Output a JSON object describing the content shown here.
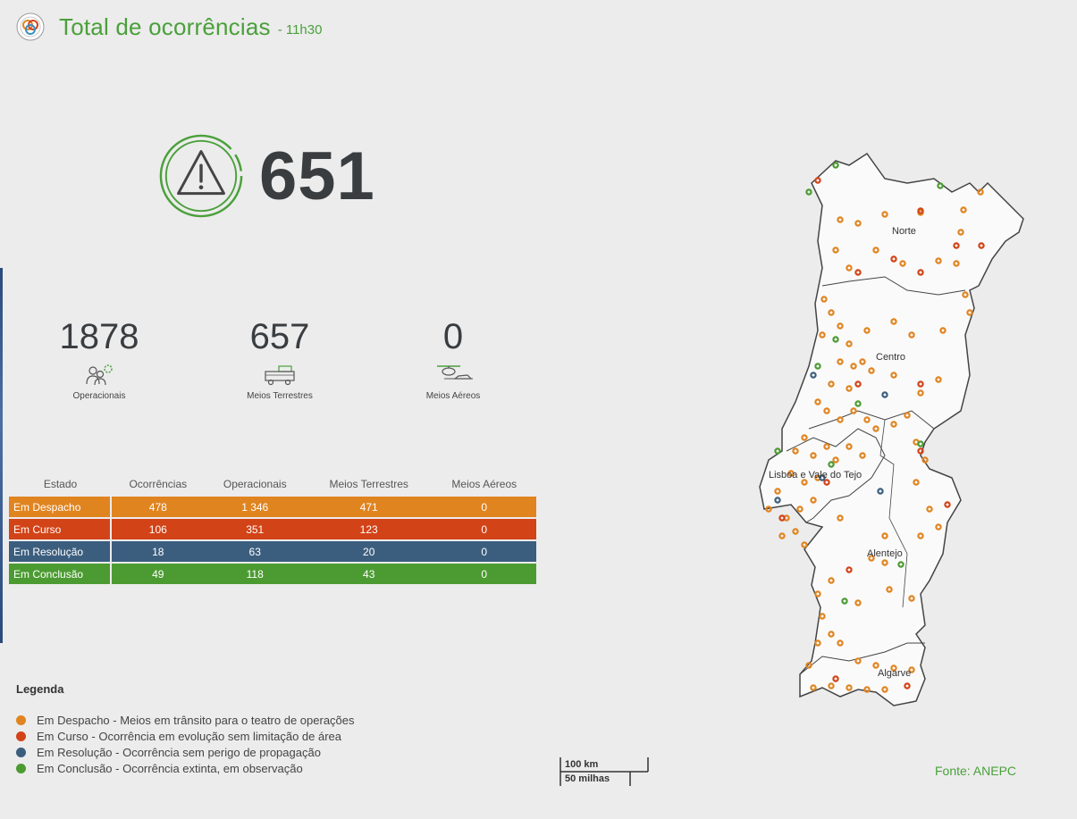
{
  "header": {
    "title": "Total de ocorrências",
    "time": "- 11h30",
    "logo_icon": "anepc-logo-icon"
  },
  "total": {
    "value": "651",
    "icon": "warning-icon"
  },
  "stats": [
    {
      "value": "1878",
      "label": "Operacionais",
      "icon": "firefighters-icon"
    },
    {
      "value": "657",
      "label": "Meios Terrestres",
      "icon": "fire-truck-icon"
    },
    {
      "value": "0",
      "label": "Meios Aéreos",
      "icon": "aircraft-icon"
    }
  ],
  "table": {
    "headers": [
      "Estado",
      "Ocorrências",
      "Operacionais",
      "Meios Terrestres",
      "Meios Aéreos"
    ],
    "rows": [
      {
        "estado": "Em Despacho",
        "ocorrencias": "478",
        "operacionais": "1 346",
        "terrestres": "471",
        "aereos": "0"
      },
      {
        "estado": "Em Curso",
        "ocorrencias": "106",
        "operacionais": "351",
        "terrestres": "123",
        "aereos": "0"
      },
      {
        "estado": "Em Resolução",
        "ocorrencias": "18",
        "operacionais": "63",
        "terrestres": "20",
        "aereos": "0"
      },
      {
        "estado": "Em Conclusão",
        "ocorrencias": "49",
        "operacionais": "118",
        "terrestres": "43",
        "aereos": "0"
      }
    ]
  },
  "legend": {
    "title": "Legenda",
    "items": [
      {
        "label": "Em Despacho - Meios em trânsito para o teatro de operações",
        "color": "#e08420"
      },
      {
        "label": "Em Curso - Ocorrência em evolução sem limitação de área",
        "color": "#d24317"
      },
      {
        "label": "Em Resolução - Ocorrência sem perigo de propagação",
        "color": "#3c5e7e"
      },
      {
        "label": "Em Conclusão - Ocorrência extinta, em observação",
        "color": "#4c9b32"
      }
    ]
  },
  "scale": {
    "km": "100 km",
    "miles": "50 milhas"
  },
  "source": "Fonte: ANEPC",
  "map": {
    "regions": [
      "Norte",
      "Centro",
      "Lisboa e Vale do Tejo",
      "Alentejo",
      "Algarve"
    ]
  },
  "colors": {
    "accent": "#4aa03a",
    "despacho": "#e08420",
    "curso": "#d24317",
    "resolucao": "#3c5e7e",
    "conclusao": "#4c9b32"
  }
}
